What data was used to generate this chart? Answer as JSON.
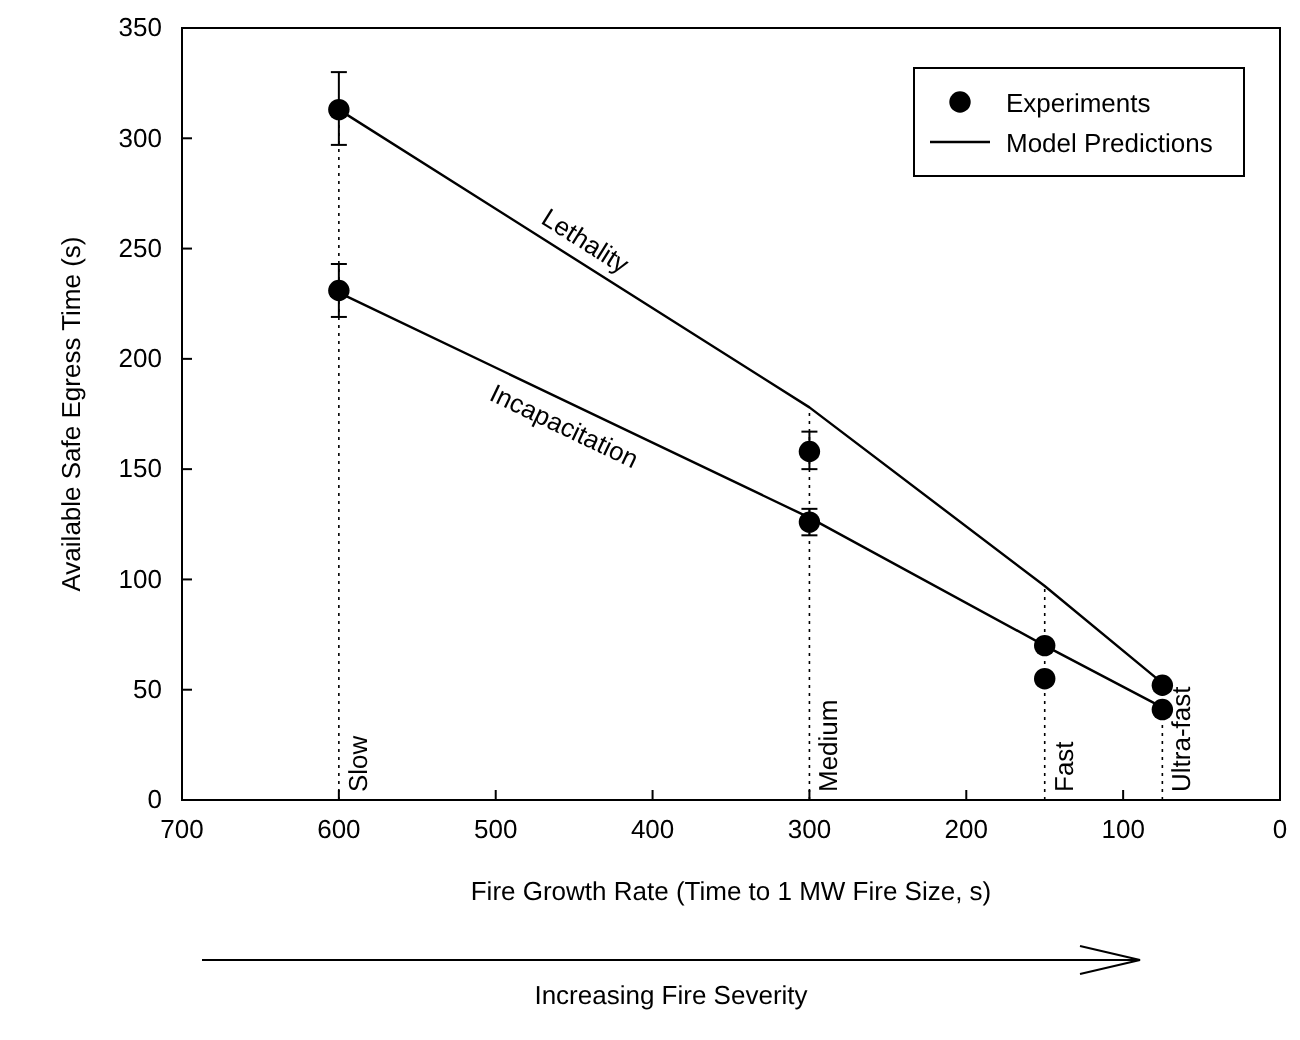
{
  "chart_data": {
    "type": "line",
    "xlabel": "Fire Growth Rate (Time to 1 MW Fire Size, s)",
    "ylabel": "Available Safe Egress Time (s)",
    "xlim": [
      700,
      0
    ],
    "xticks": [
      700,
      600,
      500,
      400,
      300,
      200,
      100,
      0
    ],
    "ylim": [
      0,
      350
    ],
    "yticks": [
      0,
      50,
      100,
      150,
      200,
      250,
      300,
      350
    ],
    "grid": false,
    "legend": "top right",
    "series": [
      {
        "name": "Experiments",
        "type": "scatter",
        "marker": "circle",
        "color": "#000000",
        "x": [
          600,
          600,
          300,
          300,
          150,
          150,
          75,
          75
        ],
        "values": [
          313,
          231,
          158,
          126,
          70,
          55,
          52,
          41
        ],
        "errors": [
          [
            297,
            330
          ],
          [
            219,
            243
          ],
          [
            150,
            167
          ],
          [
            120,
            132
          ],
          null,
          null,
          null,
          null
        ]
      },
      {
        "name": "Lethality",
        "marker": "none",
        "line_style": "solid",
        "color": "#000000",
        "x": [
          600,
          300,
          150,
          75
        ],
        "values": [
          313,
          178,
          97,
          53
        ]
      },
      {
        "name": "Incapacitation",
        "marker": "none",
        "line_style": "solid",
        "color": "#000000",
        "x": [
          600,
          300,
          150,
          75
        ],
        "values": [
          230,
          128,
          70,
          42
        ]
      }
    ],
    "ref_lines": [
      {
        "axis": "x",
        "value": 600,
        "label": "Slow",
        "line_style": "dotted",
        "color": "#000000"
      },
      {
        "axis": "x",
        "value": 300,
        "label": "Medium",
        "line_style": "dotted",
        "color": "#000000"
      },
      {
        "axis": "x",
        "value": 150,
        "label": "Fast",
        "line_style": "dotted",
        "color": "#000000"
      },
      {
        "axis": "x",
        "value": 75,
        "label": "Ultra-fast",
        "line_style": "dotted",
        "color": "#000000"
      }
    ],
    "annotations": [
      "Model Predictions",
      "Increasing Fire Severity"
    ]
  }
}
